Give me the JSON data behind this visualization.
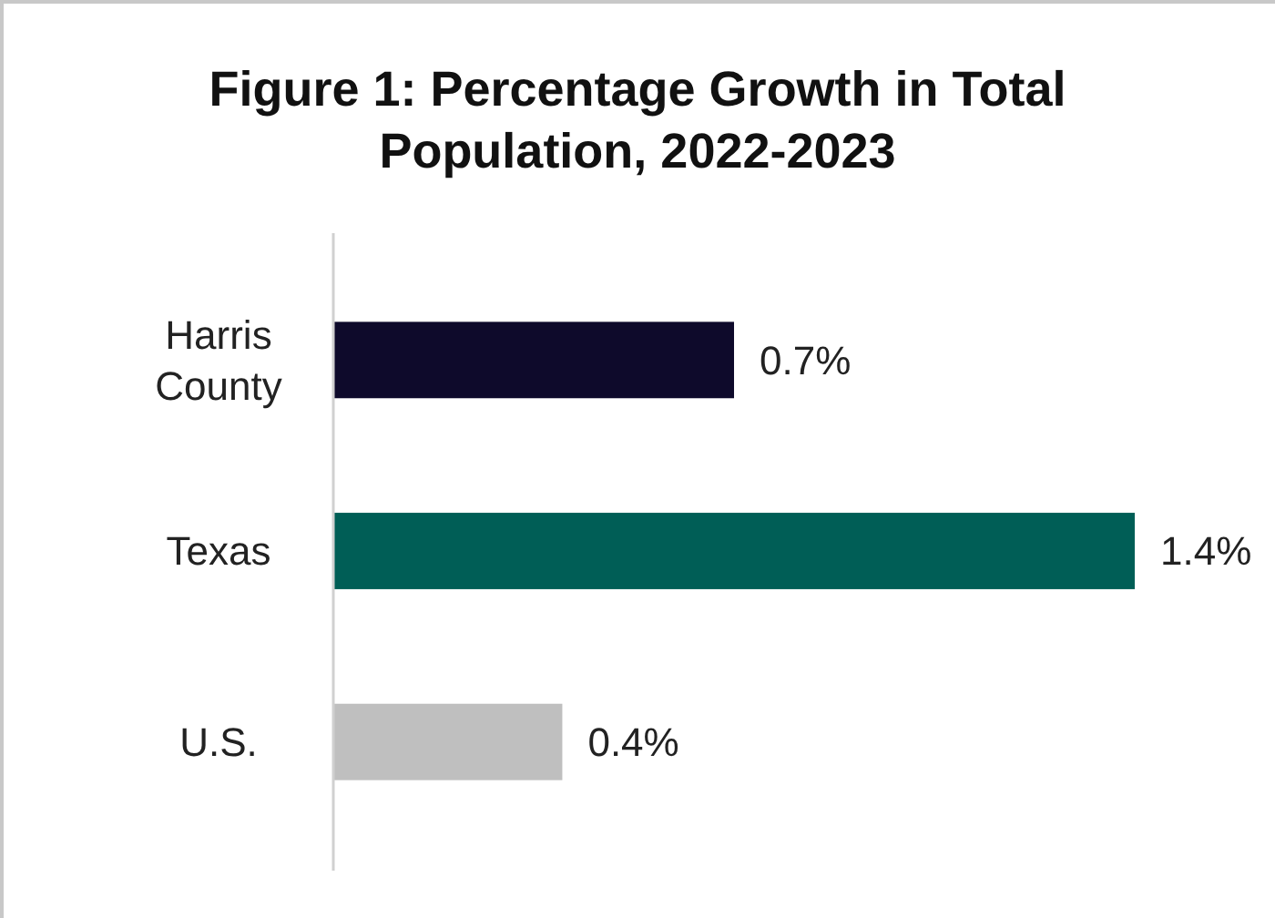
{
  "chart_data": {
    "type": "bar",
    "orientation": "horizontal",
    "title": "Figure 1: Percentage Growth in Total Population, 2022-2023",
    "categories": [
      "Harris County",
      "Texas",
      "U.S."
    ],
    "values": [
      0.7,
      1.4,
      0.4
    ],
    "colors": [
      "#0e0a2b",
      "#005e56",
      "#bfbfbf"
    ],
    "value_labels": [
      "0.7%",
      "1.4%",
      "0.4%"
    ],
    "tick_labels": "y"
  }
}
